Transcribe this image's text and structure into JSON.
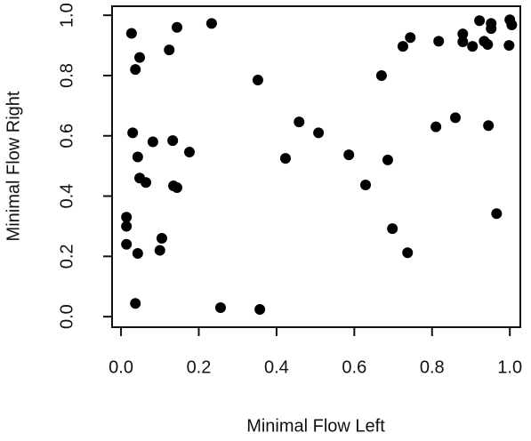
{
  "chart_data": {
    "type": "scatter",
    "x_label": "Minimal Flow Left",
    "y_label": "Minimal Flow Right",
    "color": "#000000",
    "xlim": [
      -0.023,
      1.027
    ],
    "ylim": [
      -0.035,
      1.03
    ],
    "xticks": [
      {
        "value": 0,
        "label": "0.0"
      },
      {
        "value": 0.2,
        "label": "0.2"
      },
      {
        "value": 0.4,
        "label": "0.4"
      },
      {
        "value": 0.6,
        "label": "0.6"
      },
      {
        "value": 0.8,
        "label": "0.8"
      },
      {
        "value": 1,
        "label": "1.0"
      }
    ],
    "yticks": [
      {
        "value": 0,
        "label": "0.0"
      },
      {
        "value": 0.2,
        "label": "0.2"
      },
      {
        "value": 0.4,
        "label": "0.4"
      },
      {
        "value": 0.6,
        "label": "0.6"
      },
      {
        "value": 0.8,
        "label": "0.8"
      },
      {
        "value": 1,
        "label": "1.0"
      }
    ],
    "x": [
      0.027,
      0.037,
      0.048,
      0.03,
      0.043,
      0.048,
      0.064,
      0.082,
      0.014,
      0.014,
      0.014,
      0.043,
      0.037,
      0.105,
      0.1,
      0.124,
      0.144,
      0.133,
      0.135,
      0.144,
      0.176,
      0.233,
      0.256,
      0.352,
      0.357,
      0.423,
      0.458,
      0.508,
      0.586,
      0.629,
      0.67,
      0.686,
      0.698,
      0.725,
      0.744,
      0.737,
      0.81,
      0.817,
      0.86,
      0.879,
      0.879,
      0.904,
      0.922,
      0.934,
      0.943,
      0.952,
      0.952,
      0.945,
      0.966,
      1.0,
      1.005,
      0.998
    ],
    "values": [
      0.94,
      0.82,
      0.86,
      0.61,
      0.53,
      0.46,
      0.445,
      0.58,
      0.33,
      0.3,
      0.24,
      0.21,
      0.044,
      0.26,
      0.22,
      0.885,
      0.96,
      0.584,
      0.434,
      0.428,
      0.546,
      0.973,
      0.03,
      0.785,
      0.024,
      0.525,
      0.646,
      0.61,
      0.537,
      0.437,
      0.8,
      0.52,
      0.292,
      0.897,
      0.926,
      0.212,
      0.63,
      0.914,
      0.66,
      0.938,
      0.912,
      0.897,
      0.982,
      0.914,
      0.903,
      0.973,
      0.956,
      0.634,
      0.342,
      0.985,
      0.968,
      0.9
    ]
  }
}
